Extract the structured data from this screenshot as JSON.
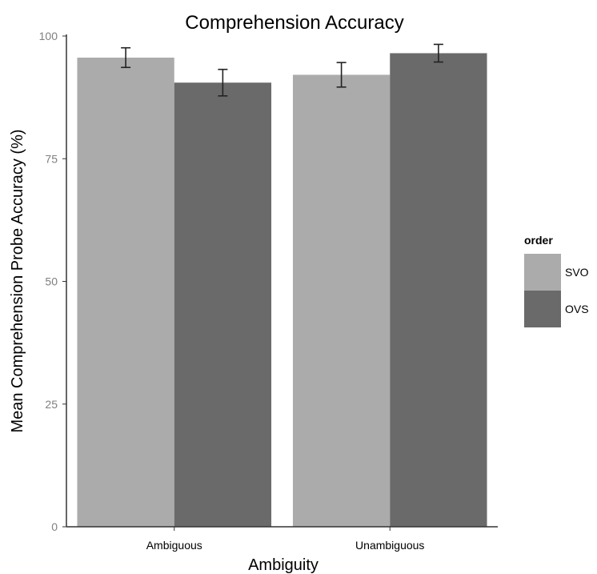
{
  "chart_data": {
    "type": "bar",
    "title": "Comprehension Accuracy",
    "xlabel": "Ambiguity",
    "ylabel": "Mean Comprehension Probe Accuracy (%)",
    "categories": [
      "Ambiguous",
      "Unambiguous"
    ],
    "series": [
      {
        "name": "SVO",
        "values": [
          95.6,
          92.1
        ],
        "error": [
          2.0,
          2.5
        ],
        "color": "#ababab"
      },
      {
        "name": "OVS",
        "values": [
          90.5,
          96.5
        ],
        "error": [
          2.7,
          1.8
        ],
        "color": "#6a6a6a"
      }
    ],
    "ylim": [
      0,
      100
    ],
    "yticks": [
      0,
      25,
      50,
      75,
      100
    ],
    "ytick_labels": [
      "0",
      "25",
      "50",
      "75",
      "100"
    ],
    "grid": false,
    "legend": {
      "title": "order",
      "placement": "right"
    }
  }
}
